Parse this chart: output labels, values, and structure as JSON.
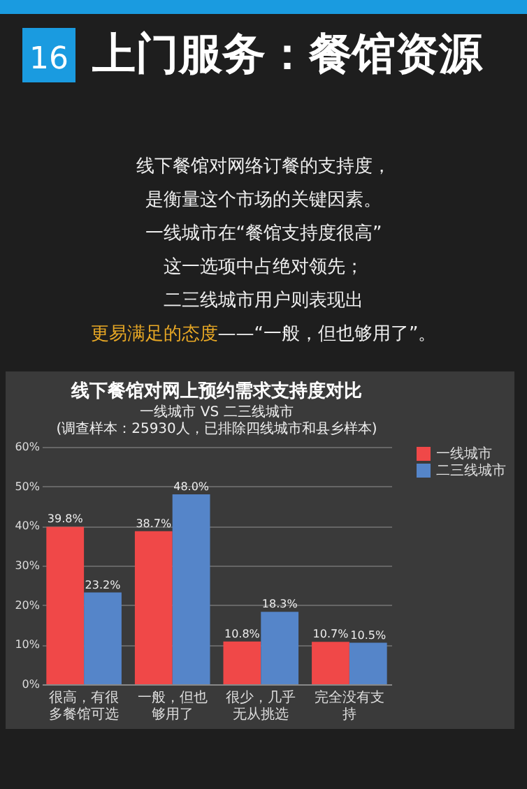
{
  "chart_data": {
    "type": "bar",
    "title": "线下餐馆对网上预约需求支持度对比",
    "subtitle": "一线城市 VS 二三线城市",
    "annotations": [
      "16",
      "上门服务：餐馆资源",
      "线下餐馆对网络订餐的支持度，",
      "是衡量这个市场的关键因素。",
      "一线城市在“餐馆支持度很高”",
      "这一选项中占绝对领先；",
      "二三线城市用户则表现出",
      "更易满足的态度",
      "——“一般，但也够用了”。",
      "(调查样本：25930人，已排除四线城市和县乡样本)"
    ],
    "categories": [
      "很高，有很多餐馆可选",
      "一般，但也够用了",
      "很少，几乎无从挑选",
      "完全没有支持"
    ],
    "series": [
      {
        "name": "一线城市",
        "color": "#f04848",
        "values": [
          39.8,
          38.7,
          10.8,
          10.7
        ],
        "value_labels": [
          "39.8%",
          "38.7%",
          "10.8%",
          "10.7%"
        ]
      },
      {
        "name": "二三线城市",
        "color": "#5585c9",
        "values": [
          23.2,
          48.0,
          18.3,
          10.5
        ],
        "value_labels": [
          "23.2%",
          "48.0%",
          "18.3%",
          "10.5%"
        ]
      }
    ],
    "ylim": [
      0,
      60
    ],
    "yticks": [
      {
        "value": 0,
        "label": "0%"
      },
      {
        "value": 10,
        "label": "10%"
      },
      {
        "value": 20,
        "label": "20%"
      },
      {
        "value": 30,
        "label": "30%"
      },
      {
        "value": 40,
        "label": "40%"
      },
      {
        "value": 50,
        "label": "50%"
      },
      {
        "value": 60,
        "label": "60%"
      }
    ],
    "grid": "y",
    "legend": "right"
  }
}
